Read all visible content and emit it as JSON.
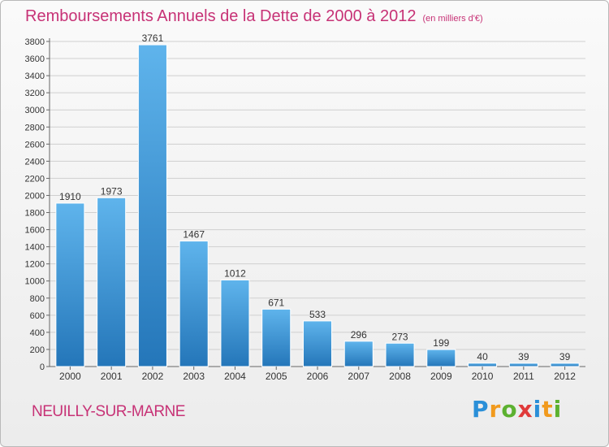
{
  "title": {
    "main": "Remboursements Annuels de la Dette de 2000 à 2012",
    "unit": "(en milliers d'€)"
  },
  "commune": "NEUILLY-SUR-MARNE",
  "logo": {
    "letters": [
      "P",
      "r",
      "o",
      "x",
      "i",
      "t",
      "i"
    ],
    "colors": [
      "#2a8fd8",
      "#f19a1d",
      "#5cb130",
      "#e03a3a",
      "#2a8fd8",
      "#f19a1d",
      "#5cb130"
    ]
  },
  "colors": {
    "title": "#c73276",
    "bar_top": "#5fb4ec",
    "bar_bottom": "#2476b9",
    "grid": "#cfcfcf"
  },
  "chart_data": {
    "type": "bar",
    "title": "Remboursements Annuels de la Dette de 2000 à 2012",
    "unit": "(en milliers d'€)",
    "categories": [
      "2000",
      "2001",
      "2002",
      "2003",
      "2004",
      "2005",
      "2006",
      "2007",
      "2008",
      "2009",
      "2010",
      "2011",
      "2012"
    ],
    "values": [
      1910,
      1973,
      3761,
      1467,
      1012,
      671,
      533,
      296,
      273,
      199,
      40,
      39,
      39
    ],
    "data_labels": [
      "1910",
      "1973",
      "3761",
      "1467",
      "1012",
      "671",
      "533",
      "296",
      "273",
      "199",
      "40",
      "39",
      "39"
    ],
    "yticks": [
      0,
      200,
      400,
      600,
      800,
      1000,
      1200,
      1400,
      1600,
      1800,
      2000,
      2200,
      2400,
      2600,
      2800,
      3000,
      3200,
      3400,
      3600,
      3800
    ],
    "ylim": [
      0,
      3800
    ],
    "grid": true,
    "legend": "none"
  }
}
